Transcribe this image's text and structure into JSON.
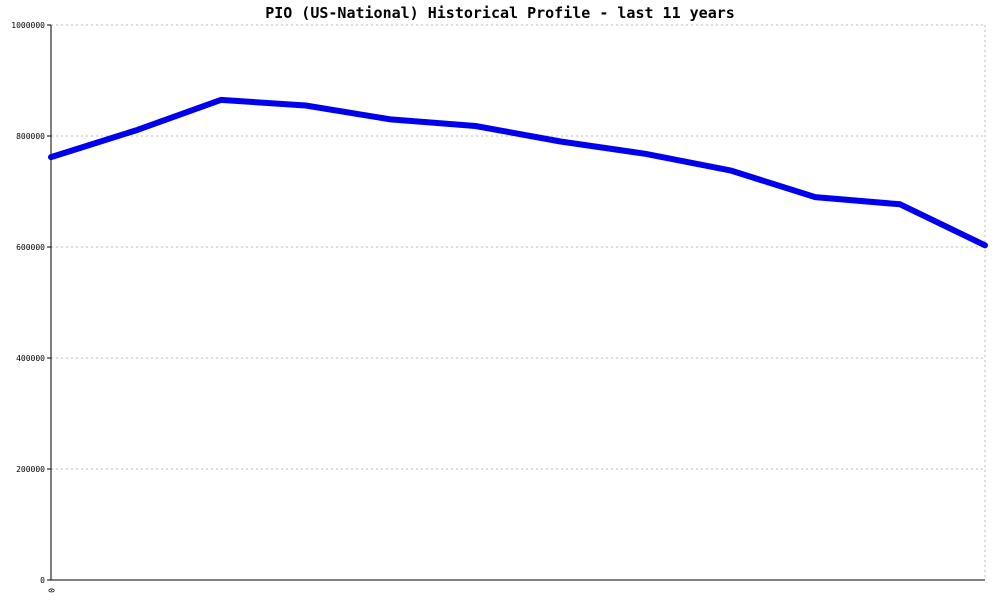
{
  "chart_data": {
    "type": "line",
    "title": "PIO (US-National) Historical Profile - last 11 years",
    "xlabel": "",
    "ylabel": "",
    "ylim": [
      0,
      1000000
    ],
    "yticks": [
      0,
      200000,
      400000,
      600000,
      800000,
      1000000
    ],
    "ytick_labels": [
      "0",
      "200000",
      "400000",
      "600000",
      "800000",
      "1000000"
    ],
    "xtick_labels": [
      "0"
    ],
    "grid": true,
    "line_color": "#0000ee",
    "grid_color": "#bbbbbb",
    "series": [
      {
        "values": [
          762000,
          810000,
          865000,
          855000,
          830000,
          818000,
          790000,
          768000,
          738000,
          690000,
          677000,
          603000
        ]
      }
    ]
  }
}
